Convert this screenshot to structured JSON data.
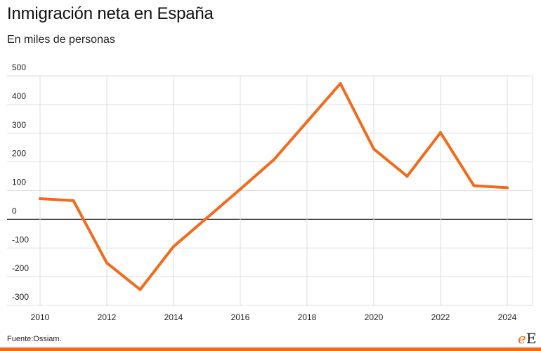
{
  "header": {
    "title": "Inmigración neta en España",
    "subtitle": "En miles de personas"
  },
  "footer": {
    "source": "Fuente:Ossiam.",
    "logo_text": "E",
    "logo_accent": "e"
  },
  "colors": {
    "line": "#f26b1d",
    "grid": "#dddddd",
    "zero_line": "#222222",
    "accent_bar": "#f26b1d"
  },
  "chart_data": {
    "type": "line",
    "title": "Inmigración neta en España",
    "subtitle": "En miles de personas",
    "xlabel": "",
    "ylabel": "",
    "x": [
      2010,
      2011,
      2012,
      2013,
      2014,
      2015,
      2016,
      2017,
      2018,
      2019,
      2020,
      2021,
      2022,
      2023,
      2024
    ],
    "series": [
      {
        "values": [
          72,
          65,
          -152,
          -245,
          -95,
          5,
          105,
          207,
          340,
          473,
          245,
          150,
          302,
          117,
          110
        ]
      }
    ],
    "x_ticks": [
      "2010",
      "2012",
      "2014",
      "2016",
      "2018",
      "2020",
      "2022",
      "2024"
    ],
    "y_ticks": [
      "500",
      "400",
      "300",
      "200",
      "100",
      "0",
      "-100",
      "-200",
      "-300"
    ],
    "ylim": [
      -300,
      500
    ],
    "xlim": [
      2010,
      2024
    ],
    "grid": true,
    "legend": "none"
  }
}
